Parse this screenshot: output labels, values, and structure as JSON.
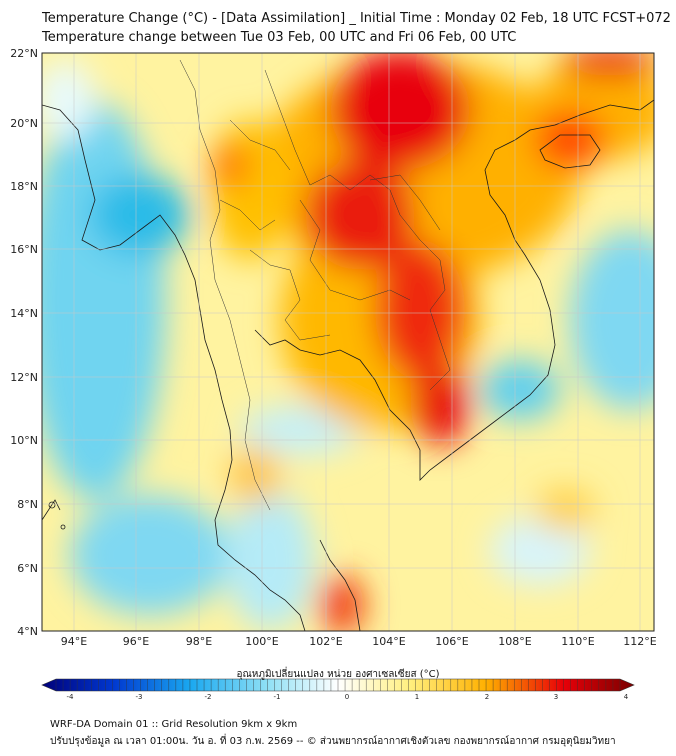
{
  "header": {
    "title_line1": "Temperature Change (°C) - [Data Assimilation] _ Initial Time : Monday 02 Feb, 18 UTC FCST+072",
    "title_line2": "Temperature change between Tue 03 Feb, 00 UTC and Fri 06 Feb, 00 UTC"
  },
  "map": {
    "lat_labels": [
      "22°N",
      "20°N",
      "18°N",
      "16°N",
      "14°N",
      "12°N",
      "10°N",
      "8°N",
      "6°N",
      "4°N"
    ],
    "lon_labels": [
      "94°E",
      "96°E",
      "98°E",
      "100°E",
      "102°E",
      "104°E",
      "106°E",
      "108°E",
      "110°E",
      "112°E"
    ],
    "colors": {
      "hot": "#e8000b",
      "warm": "#ffb000",
      "mild": "#fff3a0",
      "cool": "#a8e8f5",
      "cold": "#38c8ee"
    }
  },
  "colorbar": {
    "label": "อุณหภูมิเปลี่ยนแปลง หน่วย องศาเซลเซียส (°C)",
    "ticks": [
      "-4",
      "-3",
      "-2",
      "-1",
      "0",
      "1",
      "2",
      "3",
      "4"
    ]
  },
  "footer": {
    "line1": "WRF-DA Domain 01 :: Grid Resolution 9km x 9km",
    "line2": "ปรับปรุงข้อมูล ณ เวลา 01:00น. วัน อ. ที่ 03 ก.พ. 2569 -- © ส่วนพยากรณ์อากาศเชิงตัวเลข กองพยากรณ์อากาศ กรมอุตุนิยมวิทยา"
  }
}
